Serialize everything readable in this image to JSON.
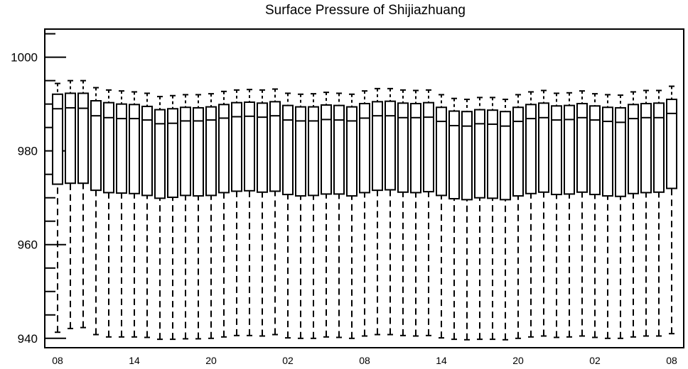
{
  "chart_data": {
    "type": "boxplot",
    "title": "Surface Pressure of Shijiazhuang",
    "xlabel": "",
    "ylabel": "",
    "ylim": [
      938,
      1006
    ],
    "yticks": [
      940,
      960,
      980,
      1000
    ],
    "x_tick_labels": [
      "08",
      "14",
      "20",
      "02",
      "08",
      "14",
      "20",
      "02",
      "08"
    ],
    "x_tick_positions": [
      0,
      6,
      12,
      18,
      24,
      30,
      36,
      42,
      48
    ],
    "grid": false,
    "legend": "none",
    "boxes": [
      {
        "x": 0,
        "min": 941.3,
        "q1": 972.9,
        "median": 989.0,
        "q3": 992.1,
        "max": 994.4
      },
      {
        "x": 1,
        "min": 942.1,
        "q1": 973.1,
        "median": 989.2,
        "q3": 992.3,
        "max": 995.0
      },
      {
        "x": 2,
        "min": 942.3,
        "q1": 973.1,
        "median": 989.1,
        "q3": 992.3,
        "max": 995.0
      },
      {
        "x": 3,
        "min": 940.8,
        "q1": 971.6,
        "median": 987.5,
        "q3": 990.7,
        "max": 993.5
      },
      {
        "x": 4,
        "min": 940.3,
        "q1": 971.1,
        "median": 987.1,
        "q3": 990.3,
        "max": 993.0
      },
      {
        "x": 5,
        "min": 940.3,
        "q1": 971.0,
        "median": 986.9,
        "q3": 990.0,
        "max": 992.8
      },
      {
        "x": 6,
        "min": 940.3,
        "q1": 970.9,
        "median": 986.9,
        "q3": 989.9,
        "max": 992.6
      },
      {
        "x": 7,
        "min": 940.2,
        "q1": 970.5,
        "median": 986.6,
        "q3": 989.5,
        "max": 992.3
      },
      {
        "x": 8,
        "min": 939.8,
        "q1": 969.9,
        "median": 985.8,
        "q3": 988.8,
        "max": 991.6
      },
      {
        "x": 9,
        "min": 939.8,
        "q1": 970.1,
        "median": 985.9,
        "q3": 989.0,
        "max": 991.8
      },
      {
        "x": 10,
        "min": 939.9,
        "q1": 970.5,
        "median": 986.4,
        "q3": 989.3,
        "max": 992.0
      },
      {
        "x": 11,
        "min": 939.9,
        "q1": 970.4,
        "median": 986.4,
        "q3": 989.2,
        "max": 992.0
      },
      {
        "x": 12,
        "min": 940.0,
        "q1": 970.5,
        "median": 986.6,
        "q3": 989.4,
        "max": 992.2
      },
      {
        "x": 13,
        "min": 940.3,
        "q1": 971.1,
        "median": 987.0,
        "q3": 989.9,
        "max": 992.7
      },
      {
        "x": 14,
        "min": 940.6,
        "q1": 971.4,
        "median": 987.3,
        "q3": 990.3,
        "max": 993.0
      },
      {
        "x": 15,
        "min": 940.6,
        "q1": 971.5,
        "median": 987.4,
        "q3": 990.4,
        "max": 993.1
      },
      {
        "x": 16,
        "min": 940.5,
        "q1": 971.2,
        "median": 987.2,
        "q3": 990.2,
        "max": 993.0
      },
      {
        "x": 17,
        "min": 940.8,
        "q1": 971.4,
        "median": 987.5,
        "q3": 990.5,
        "max": 993.2
      },
      {
        "x": 18,
        "min": 940.1,
        "q1": 970.7,
        "median": 986.6,
        "q3": 989.7,
        "max": 992.3
      },
      {
        "x": 19,
        "min": 940.0,
        "q1": 970.4,
        "median": 986.4,
        "q3": 989.4,
        "max": 992.1
      },
      {
        "x": 20,
        "min": 940.0,
        "q1": 970.5,
        "median": 986.4,
        "q3": 989.4,
        "max": 992.2
      },
      {
        "x": 21,
        "min": 940.3,
        "q1": 970.8,
        "median": 986.7,
        "q3": 989.8,
        "max": 992.5
      },
      {
        "x": 22,
        "min": 940.2,
        "q1": 970.8,
        "median": 986.6,
        "q3": 989.7,
        "max": 992.3
      },
      {
        "x": 23,
        "min": 940.0,
        "q1": 970.4,
        "median": 986.4,
        "q3": 989.4,
        "max": 992.1
      },
      {
        "x": 24,
        "min": 940.5,
        "q1": 971.1,
        "median": 987.0,
        "q3": 990.1,
        "max": 992.8
      },
      {
        "x": 25,
        "min": 940.8,
        "q1": 971.6,
        "median": 987.5,
        "q3": 990.5,
        "max": 993.3
      },
      {
        "x": 26,
        "min": 940.8,
        "q1": 971.7,
        "median": 987.5,
        "q3": 990.6,
        "max": 993.3
      },
      {
        "x": 27,
        "min": 940.6,
        "q1": 971.2,
        "median": 987.1,
        "q3": 990.2,
        "max": 993.0
      },
      {
        "x": 28,
        "min": 940.5,
        "q1": 971.1,
        "median": 987.1,
        "q3": 990.1,
        "max": 992.9
      },
      {
        "x": 29,
        "min": 940.6,
        "q1": 971.3,
        "median": 987.2,
        "q3": 990.3,
        "max": 993.0
      },
      {
        "x": 30,
        "min": 940.1,
        "q1": 970.5,
        "median": 986.3,
        "q3": 989.3,
        "max": 992.0
      },
      {
        "x": 31,
        "min": 939.8,
        "q1": 969.8,
        "median": 985.4,
        "q3": 988.5,
        "max": 991.2
      },
      {
        "x": 32,
        "min": 939.7,
        "q1": 969.6,
        "median": 985.3,
        "q3": 988.4,
        "max": 991.0
      },
      {
        "x": 33,
        "min": 939.8,
        "q1": 970.0,
        "median": 985.8,
        "q3": 988.8,
        "max": 991.4
      },
      {
        "x": 34,
        "min": 939.8,
        "q1": 969.9,
        "median": 985.7,
        "q3": 988.7,
        "max": 991.4
      },
      {
        "x": 35,
        "min": 939.7,
        "q1": 969.6,
        "median": 985.3,
        "q3": 988.4,
        "max": 991.0
      },
      {
        "x": 36,
        "min": 940.0,
        "q1": 970.4,
        "median": 986.3,
        "q3": 989.3,
        "max": 992.0
      },
      {
        "x": 37,
        "min": 940.3,
        "q1": 970.9,
        "median": 986.9,
        "q3": 989.9,
        "max": 992.6
      },
      {
        "x": 38,
        "min": 940.5,
        "q1": 971.2,
        "median": 987.1,
        "q3": 990.2,
        "max": 992.9
      },
      {
        "x": 39,
        "min": 940.2,
        "q1": 970.7,
        "median": 986.6,
        "q3": 989.6,
        "max": 992.3
      },
      {
        "x": 40,
        "min": 940.3,
        "q1": 970.8,
        "median": 986.7,
        "q3": 989.7,
        "max": 992.4
      },
      {
        "x": 41,
        "min": 940.5,
        "q1": 971.2,
        "median": 987.1,
        "q3": 990.1,
        "max": 992.8
      },
      {
        "x": 42,
        "min": 940.2,
        "q1": 970.7,
        "median": 986.6,
        "q3": 989.6,
        "max": 992.2
      },
      {
        "x": 43,
        "min": 940.0,
        "q1": 970.4,
        "median": 986.3,
        "q3": 989.3,
        "max": 992.0
      },
      {
        "x": 44,
        "min": 940.0,
        "q1": 970.3,
        "median": 986.1,
        "q3": 989.2,
        "max": 991.9
      },
      {
        "x": 45,
        "min": 940.3,
        "q1": 970.9,
        "median": 986.9,
        "q3": 989.9,
        "max": 992.6
      },
      {
        "x": 46,
        "min": 940.5,
        "q1": 971.1,
        "median": 987.1,
        "q3": 990.1,
        "max": 992.9
      },
      {
        "x": 47,
        "min": 940.5,
        "q1": 971.2,
        "median": 987.1,
        "q3": 990.2,
        "max": 992.9
      },
      {
        "x": 48,
        "min": 941.0,
        "q1": 972.0,
        "median": 988.0,
        "q3": 991.0,
        "max": 993.8
      }
    ]
  }
}
